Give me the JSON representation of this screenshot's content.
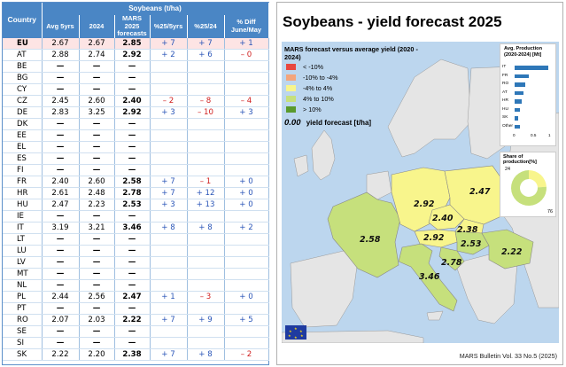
{
  "table": {
    "header_top": "Soybeans (t/ha)",
    "country_label": "Country",
    "columns": [
      "Avg 5yrs",
      "2024",
      "MARS 2025 forecasts",
      "%25/5yrs",
      "%25/24",
      "% Diff June/May"
    ],
    "rows": [
      {
        "c": "EU",
        "avg": "2.67",
        "y24": "2.67",
        "f": "2.85",
        "p5": "+ 7",
        "p24": "+ 7",
        "pd": "+ 1"
      },
      {
        "c": "AT",
        "avg": "2.88",
        "y24": "2.74",
        "f": "2.92",
        "p5": "+ 2",
        "p24": "+ 6",
        "pd": "– 0"
      },
      {
        "c": "BE",
        "avg": "—",
        "y24": "—",
        "f": "—",
        "p5": "",
        "p24": "",
        "pd": ""
      },
      {
        "c": "BG",
        "avg": "—",
        "y24": "—",
        "f": "—",
        "p5": "",
        "p24": "",
        "pd": ""
      },
      {
        "c": "CY",
        "avg": "—",
        "y24": "—",
        "f": "—",
        "p5": "",
        "p24": "",
        "pd": ""
      },
      {
        "c": "CZ",
        "avg": "2.45",
        "y24": "2.60",
        "f": "2.40",
        "p5": "– 2",
        "p24": "– 8",
        "pd": "– 4"
      },
      {
        "c": "DE",
        "avg": "2.83",
        "y24": "3.25",
        "f": "2.92",
        "p5": "+ 3",
        "p24": "– 10",
        "pd": "+ 3"
      },
      {
        "c": "DK",
        "avg": "—",
        "y24": "—",
        "f": "—",
        "p5": "",
        "p24": "",
        "pd": ""
      },
      {
        "c": "EE",
        "avg": "—",
        "y24": "—",
        "f": "—",
        "p5": "",
        "p24": "",
        "pd": ""
      },
      {
        "c": "EL",
        "avg": "—",
        "y24": "—",
        "f": "—",
        "p5": "",
        "p24": "",
        "pd": ""
      },
      {
        "c": "ES",
        "avg": "—",
        "y24": "—",
        "f": "—",
        "p5": "",
        "p24": "",
        "pd": ""
      },
      {
        "c": "FI",
        "avg": "—",
        "y24": "—",
        "f": "—",
        "p5": "",
        "p24": "",
        "pd": ""
      },
      {
        "c": "FR",
        "avg": "2.40",
        "y24": "2.60",
        "f": "2.58",
        "p5": "+ 7",
        "p24": "– 1",
        "pd": "+ 0"
      },
      {
        "c": "HR",
        "avg": "2.61",
        "y24": "2.48",
        "f": "2.78",
        "p5": "+ 7",
        "p24": "+ 12",
        "pd": "+ 0"
      },
      {
        "c": "HU",
        "avg": "2.47",
        "y24": "2.23",
        "f": "2.53",
        "p5": "+ 3",
        "p24": "+ 13",
        "pd": "+ 0"
      },
      {
        "c": "IE",
        "avg": "—",
        "y24": "—",
        "f": "—",
        "p5": "",
        "p24": "",
        "pd": ""
      },
      {
        "c": "IT",
        "avg": "3.19",
        "y24": "3.21",
        "f": "3.46",
        "p5": "+ 8",
        "p24": "+ 8",
        "pd": "+ 2"
      },
      {
        "c": "LT",
        "avg": "—",
        "y24": "—",
        "f": "—",
        "p5": "",
        "p24": "",
        "pd": ""
      },
      {
        "c": "LU",
        "avg": "—",
        "y24": "—",
        "f": "—",
        "p5": "",
        "p24": "",
        "pd": ""
      },
      {
        "c": "LV",
        "avg": "—",
        "y24": "—",
        "f": "—",
        "p5": "",
        "p24": "",
        "pd": ""
      },
      {
        "c": "MT",
        "avg": "—",
        "y24": "—",
        "f": "—",
        "p5": "",
        "p24": "",
        "pd": ""
      },
      {
        "c": "NL",
        "avg": "—",
        "y24": "—",
        "f": "—",
        "p5": "",
        "p24": "",
        "pd": ""
      },
      {
        "c": "PL",
        "avg": "2.44",
        "y24": "2.56",
        "f": "2.47",
        "p5": "+ 1",
        "p24": "– 3",
        "pd": "+ 0"
      },
      {
        "c": "PT",
        "avg": "—",
        "y24": "—",
        "f": "—",
        "p5": "",
        "p24": "",
        "pd": ""
      },
      {
        "c": "RO",
        "avg": "2.07",
        "y24": "2.03",
        "f": "2.22",
        "p5": "+ 7",
        "p24": "+ 9",
        "pd": "+ 5"
      },
      {
        "c": "SE",
        "avg": "—",
        "y24": "—",
        "f": "—",
        "p5": "",
        "p24": "",
        "pd": ""
      },
      {
        "c": "SI",
        "avg": "—",
        "y24": "—",
        "f": "—",
        "p5": "",
        "p24": "",
        "pd": ""
      },
      {
        "c": "SK",
        "avg": "2.22",
        "y24": "2.20",
        "f": "2.38",
        "p5": "+ 7",
        "p24": "+ 8",
        "pd": "– 2"
      }
    ]
  },
  "map": {
    "title": "Soybeans - yield forecast 2025",
    "legend_title": "MARS forecast versus average yield (2020 - 2024)",
    "legend_items": [
      {
        "label": "< -10%",
        "color": "#e8473f"
      },
      {
        "label": "-10% to -4%",
        "color": "#f3a57c"
      },
      {
        "label": "-4% to 4%",
        "color": "#f8f58c"
      },
      {
        "label": "4% to 10%",
        "color": "#c6e07c"
      },
      {
        "label": "> 10%",
        "color": "#5a9a2c"
      }
    ],
    "legend_forecast_value": "0.00",
    "legend_forecast_label": "yield forecast [t/ha]",
    "country_values": {
      "DE": "2.92",
      "PL": "2.47",
      "CZ": "2.40",
      "SK": "2.38",
      "AT": "2.92",
      "HU": "2.53",
      "FR": "2.58",
      "RO": "2.22",
      "HR": "2.78",
      "IT": "3.46"
    },
    "production_box": {
      "title": "Avg. Production (2020-2024) [Mt]",
      "countries": [
        "IT",
        "FR",
        "RO",
        "AT",
        "HR",
        "HU",
        "SK",
        "Other"
      ],
      "values": [
        0.95,
        0.4,
        0.3,
        0.25,
        0.2,
        0.15,
        0.1,
        0.15
      ],
      "axis": [
        "0",
        "0.5",
        "1"
      ]
    },
    "share_box": {
      "title": "Share of production[%]",
      "labels": [
        "24",
        "76"
      ],
      "values": [
        24,
        76
      ],
      "colors": [
        "#f8f58c",
        "#c6e07c"
      ]
    },
    "footer": "MARS Bulletin Vol. 33 No.5 (2025)"
  }
}
